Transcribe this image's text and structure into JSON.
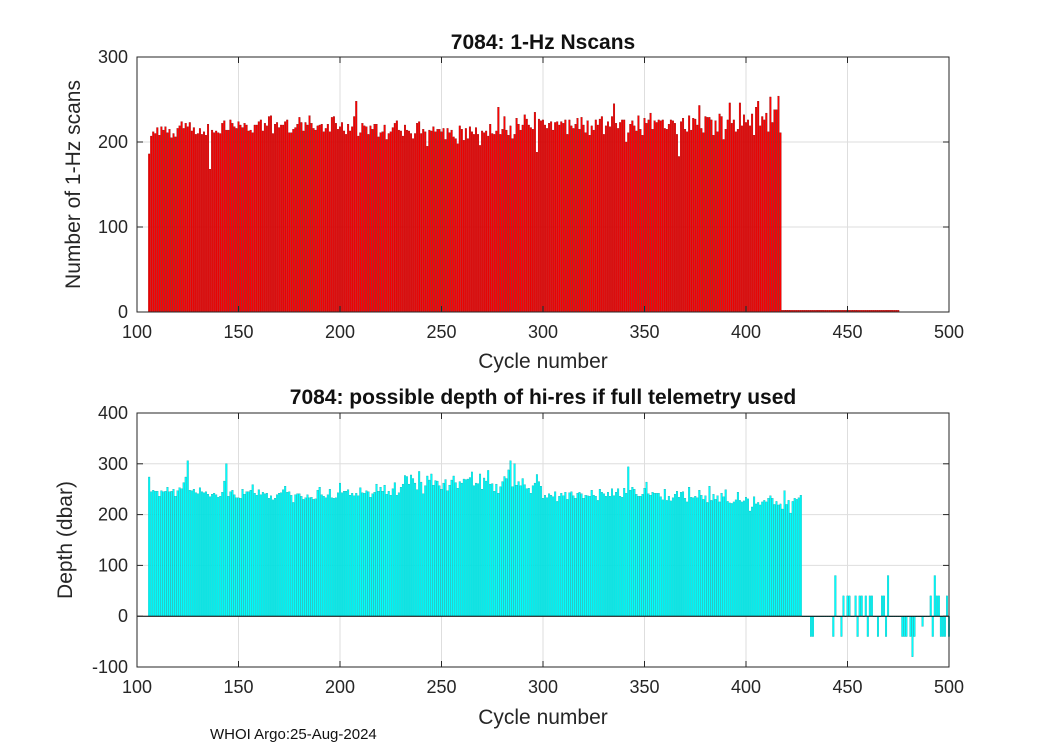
{
  "chart_data": [
    {
      "type": "bar",
      "title": "7084: 1-Hz Nscans",
      "xlabel": "Cycle number",
      "ylabel": "Number of 1-Hz scans",
      "xlim": [
        100,
        500
      ],
      "ylim": [
        0,
        300
      ],
      "xticks": [
        "100",
        "150",
        "200",
        "250",
        "300",
        "350",
        "400",
        "450",
        "500"
      ],
      "yticks": [
        "0",
        "100",
        "200",
        "300"
      ],
      "bar_color": "#ff0000",
      "edge_color": "#7a0000",
      "grid": true,
      "x_start": 106,
      "values": [
        186,
        207,
        212,
        210,
        217,
        208,
        218,
        214,
        218,
        211,
        215,
        205,
        210,
        206,
        216,
        219,
        224,
        216,
        222,
        218,
        223,
        213,
        217,
        209,
        210,
        216,
        209,
        212,
        208,
        221,
        168,
        214,
        211,
        213,
        211,
        210,
        222,
        225,
        214,
        214,
        226,
        222,
        218,
        216,
        224,
        220,
        217,
        222,
        220,
        213,
        214,
        211,
        220,
        220,
        224,
        226,
        213,
        222,
        219,
        230,
        231,
        210,
        221,
        223,
        217,
        220,
        220,
        224,
        226,
        211,
        211,
        215,
        217,
        221,
        229,
        223,
        213,
        223,
        220,
        231,
        222,
        216,
        214,
        219,
        220,
        221,
        212,
        216,
        221,
        212,
        229,
        230,
        222,
        215,
        218,
        223,
        213,
        209,
        221,
        213,
        218,
        230,
        248,
        207,
        211,
        222,
        219,
        218,
        209,
        219,
        215,
        221,
        221,
        206,
        211,
        212,
        220,
        203,
        210,
        212,
        217,
        222,
        225,
        214,
        213,
        207,
        220,
        214,
        213,
        210,
        204,
        210,
        222,
        224,
        210,
        215,
        212,
        195,
        214,
        213,
        218,
        212,
        215,
        215,
        212,
        216,
        203,
        216,
        211,
        214,
        206,
        204,
        198,
        219,
        215,
        202,
        216,
        204,
        218,
        212,
        209,
        217,
        209,
        196,
        213,
        211,
        213,
        207,
        221,
        210,
        209,
        213,
        241,
        209,
        215,
        230,
        214,
        208,
        219,
        204,
        209,
        228,
        221,
        214,
        220,
        232,
        227,
        220,
        217,
        215,
        235,
        188,
        227,
        225,
        226,
        220,
        216,
        222,
        224,
        214,
        223,
        224,
        220,
        224,
        222,
        226,
        209,
        226,
        219,
        216,
        221,
        228,
        215,
        229,
        220,
        211,
        225,
        208,
        219,
        214,
        226,
        220,
        227,
        230,
        209,
        219,
        224,
        218,
        230,
        245,
        222,
        216,
        223,
        226,
        226,
        200,
        211,
        221,
        225,
        219,
        213,
        231,
        215,
        208,
        228,
        222,
        226,
        234,
        215,
        225,
        223,
        226,
        225,
        226,
        216,
        215,
        221,
        226,
        225,
        222,
        209,
        183,
        224,
        228,
        215,
        212,
        231,
        214,
        228,
        227,
        220,
        243,
        216,
        211,
        230,
        229,
        229,
        226,
        208,
        225,
        212,
        233,
        230,
        203,
        215,
        226,
        246,
        222,
        226,
        212,
        215,
        246,
        219,
        232,
        223,
        226,
        219,
        233,
        208,
        241,
        248,
        219,
        230,
        226,
        234,
        212,
        253,
        223,
        238,
        238,
        254,
        211,
        2,
        2,
        2,
        2,
        2,
        2,
        2,
        2,
        2,
        2,
        2,
        2,
        2,
        2,
        2,
        2,
        2,
        2,
        2,
        2,
        2,
        2,
        2,
        2,
        2,
        2,
        2,
        2,
        2,
        2,
        2,
        2,
        2,
        2,
        2,
        2,
        2,
        2,
        2,
        2,
        2,
        2,
        2,
        2,
        2,
        2,
        2,
        2,
        2,
        2,
        2,
        2,
        2,
        2,
        2,
        2,
        2,
        2
      ]
    },
    {
      "type": "bar",
      "title": "7084: possible depth of hi-res if full telemetry used",
      "xlabel": "Cycle number",
      "ylabel": "Depth (dbar)",
      "xlim": [
        100,
        500
      ],
      "ylim": [
        -100,
        400
      ],
      "xticks": [
        "100",
        "150",
        "200",
        "250",
        "300",
        "350",
        "400",
        "450",
        "500"
      ],
      "yticks": [
        "-100",
        "0",
        "100",
        "200",
        "300",
        "400"
      ],
      "bar_color": "#00ffff",
      "edge_color": "#00a0a0",
      "grid": true,
      "x_start": 106,
      "values": [
        274,
        245,
        248,
        246,
        246,
        236,
        247,
        245,
        246,
        254,
        245,
        246,
        250,
        236,
        247,
        253,
        251,
        263,
        274,
        306,
        248,
        247,
        250,
        243,
        241,
        253,
        245,
        243,
        245,
        240,
        235,
        240,
        242,
        239,
        234,
        236,
        244,
        266,
        300,
        236,
        245,
        248,
        239,
        233,
        233,
        232,
        250,
        240,
        245,
        245,
        248,
        259,
        242,
        238,
        249,
        239,
        244,
        241,
        242,
        232,
        237,
        229,
        232,
        239,
        242,
        243,
        249,
        256,
        244,
        245,
        238,
        224,
        239,
        241,
        241,
        236,
        230,
        233,
        239,
        233,
        234,
        230,
        231,
        248,
        254,
        239,
        236,
        233,
        239,
        250,
        233,
        232,
        233,
        243,
        262,
        243,
        246,
        246,
        249,
        238,
        242,
        237,
        242,
        237,
        253,
        243,
        242,
        247,
        245,
        234,
        241,
        244,
        260,
        246,
        254,
        246,
        258,
        240,
        246,
        238,
        251,
        263,
        238,
        243,
        254,
        260,
        277,
        275,
        260,
        278,
        271,
        262,
        249,
        285,
        264,
        241,
        257,
        276,
        268,
        280,
        258,
        267,
        266,
        257,
        250,
        262,
        269,
        247,
        258,
        268,
        276,
        263,
        252,
        265,
        262,
        270,
        269,
        270,
        273,
        284,
        257,
        262,
        261,
        280,
        250,
        272,
        266,
        287,
        260,
        261,
        246,
        260,
        242,
        255,
        265,
        275,
        271,
        288,
        306,
        255,
        300,
        258,
        265,
        257,
        271,
        259,
        251,
        252,
        242,
        257,
        262,
        279,
        265,
        256,
        232,
        238,
        233,
        241,
        238,
        235,
        245,
        226,
        236,
        242,
        237,
        244,
        230,
        243,
        245,
        237,
        232,
        242,
        244,
        241,
        232,
        238,
        237,
        236,
        248,
        238,
        236,
        228,
        250,
        244,
        241,
        236,
        244,
        236,
        251,
        237,
        244,
        251,
        236,
        234,
        252,
        242,
        294,
        248,
        254,
        250,
        240,
        236,
        236,
        240,
        252,
        264,
        241,
        238,
        244,
        242,
        242,
        242,
        235,
        229,
        250,
        228,
        236,
        227,
        233,
        240,
        246,
        234,
        244,
        245,
        232,
        225,
        254,
        234,
        233,
        236,
        233,
        248,
        238,
        230,
        237,
        224,
        256,
        228,
        240,
        230,
        237,
        225,
        242,
        235,
        249,
        226,
        223,
        222,
        225,
        229,
        244,
        228,
        225,
        227,
        234,
        231,
        207,
        215,
        235,
        221,
        224,
        219,
        225,
        228,
        225,
        232,
        237,
        232,
        220,
        226,
        219,
        221,
        211,
        247,
        220,
        228,
        203,
        226,
        232,
        230,
        233,
        238,
        0,
        0,
        0,
        0,
        -40,
        -40,
        0,
        0,
        0,
        0,
        0,
        0,
        0,
        0,
        0,
        -40,
        80,
        0,
        0,
        -40,
        40,
        0,
        40,
        40,
        0,
        0,
        40,
        -40,
        40,
        40,
        0,
        40,
        -40,
        40,
        40,
        0,
        0,
        -40,
        0,
        40,
        40,
        -40,
        80,
        0,
        0,
        0,
        0,
        0,
        0,
        -40,
        -40,
        -40,
        0,
        -40,
        -80,
        -40,
        0,
        0,
        0,
        -20,
        0,
        0,
        0,
        40,
        -40,
        80,
        40,
        40,
        -40,
        -40,
        -40,
        40,
        -40
      ]
    }
  ],
  "footer": "WHOI Argo:25-Aug-2024"
}
